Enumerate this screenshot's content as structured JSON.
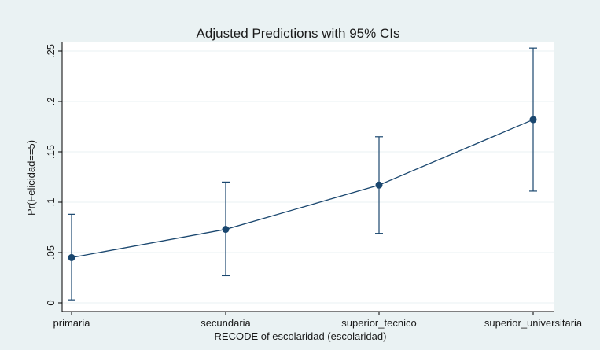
{
  "colors": {
    "outer_background": "#eaf2f3",
    "plot_background": "#ffffff",
    "gridline": "#eaf2f3",
    "series": "#1a476f",
    "axis": "#000000"
  },
  "chart_data": {
    "type": "line",
    "title": "Adjusted Predictions with 95% CIs",
    "xlabel": "RECODE of escolaridad (escolaridad)",
    "ylabel": "Pr(Felicidad==5)",
    "categories": [
      "primaria",
      "secundaria",
      "superior_tecnico",
      "superior_universitaria"
    ],
    "values": [
      0.045,
      0.073,
      0.117,
      0.182
    ],
    "ci_lower": [
      0.003,
      0.027,
      0.069,
      0.111
    ],
    "ci_upper": [
      0.088,
      0.12,
      0.165,
      0.253
    ],
    "ylim": [
      0,
      0.25
    ],
    "yticks": [
      0,
      0.05,
      0.1,
      0.15,
      0.2,
      0.25
    ],
    "ytick_labels": [
      "0",
      ".05",
      ".1",
      ".15",
      ".2",
      ".25"
    ],
    "grid": "horizontal",
    "legend": "none"
  }
}
